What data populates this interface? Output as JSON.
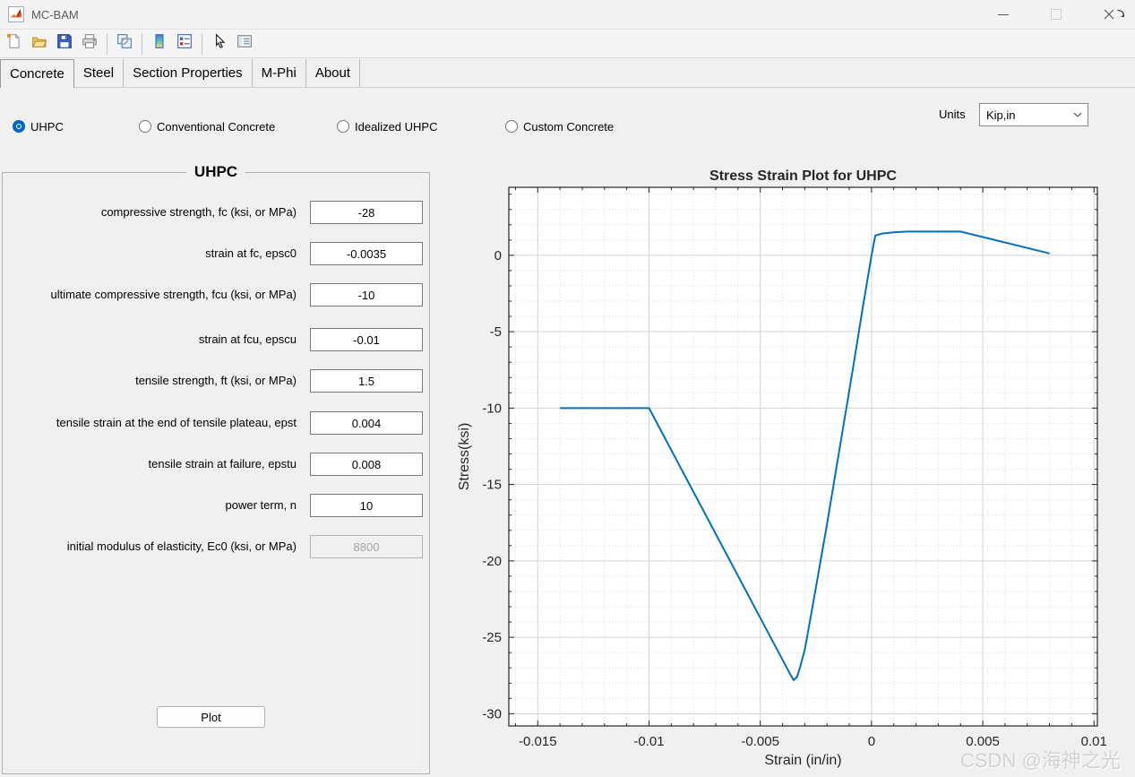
{
  "window": {
    "title": "MC-BAM",
    "controls": [
      {
        "name": "minimize"
      },
      {
        "name": "maximize"
      },
      {
        "name": "close"
      }
    ]
  },
  "toolbar": {
    "icons": [
      {
        "name": "new-figure",
        "sep_after": false
      },
      {
        "name": "open-file",
        "sep_after": false
      },
      {
        "name": "save-figure",
        "sep_after": false
      },
      {
        "name": "print-figure",
        "sep_after": true
      },
      {
        "name": "link-plot",
        "sep_after": true
      },
      {
        "name": "insert-colorbar",
        "sep_after": false
      },
      {
        "name": "insert-legend",
        "sep_after": true
      },
      {
        "name": "edit-plot",
        "sep_after": false
      },
      {
        "name": "plot-browser",
        "sep_after": false
      }
    ]
  },
  "tabs": [
    {
      "label": "Concrete",
      "selected": true
    },
    {
      "label": "Steel",
      "selected": false
    },
    {
      "label": "Section Properties",
      "selected": false
    },
    {
      "label": "M-Phi",
      "selected": false
    },
    {
      "label": "About",
      "selected": false
    }
  ],
  "materials": [
    {
      "label": "UHPC",
      "selected": true
    },
    {
      "label": "Conventional Concrete",
      "selected": false
    },
    {
      "label": "Idealized UHPC",
      "selected": false
    },
    {
      "label": "Custom Concrete",
      "selected": false
    }
  ],
  "units": {
    "label": "Units",
    "value": "Kip,in"
  },
  "panel": {
    "title": "UHPC",
    "fields": [
      {
        "key": "fc",
        "label": "compressive strength, fc (ksi, or MPa)",
        "value": "-28",
        "disabled": false
      },
      {
        "key": "epsc0",
        "label": "strain at fc, epsc0",
        "value": "-0.0035",
        "disabled": false
      },
      {
        "key": "fcu",
        "label": "ultimate compressive strength, fcu (ksi, or MPa)",
        "value": "-10",
        "disabled": false
      },
      {
        "key": "epscu",
        "label": "strain at fcu, epscu",
        "value": "-0.01",
        "disabled": false
      },
      {
        "key": "ft",
        "label": "tensile strength, ft (ksi, or MPa)",
        "value": "1.5",
        "disabled": false
      },
      {
        "key": "epst",
        "label": "tensile strain at the end of tensile plateau, epst",
        "value": "0.004",
        "disabled": false
      },
      {
        "key": "epstu",
        "label": "tensile strain at failure, epstu",
        "value": "0.008",
        "disabled": false
      },
      {
        "key": "n",
        "label": "power term, n",
        "value": "10",
        "disabled": false
      },
      {
        "key": "Ec0",
        "label": "initial modulus of elasticity, Ec0 (ksi, or MPa)",
        "value": "8800",
        "disabled": true
      }
    ],
    "plot_button": "Plot"
  },
  "chart_data": {
    "type": "line",
    "title": "Stress Strain Plot for UHPC",
    "xlabel": "Strain (in/in)",
    "ylabel": "Stress(ksi)",
    "xlim": [
      -0.0163,
      0.01015
    ],
    "ylim": [
      -30.8,
      4.45
    ],
    "xticks": [
      -0.015,
      -0.01,
      -0.005,
      0,
      0.005,
      0.01
    ],
    "xtick_labels": [
      "-0.015",
      "-0.01",
      "-0.005",
      "0",
      "0.005",
      "0.01"
    ],
    "yticks": [
      -30,
      -25,
      -20,
      -15,
      -10,
      -5,
      0
    ],
    "ytick_labels": [
      "-30",
      "-25",
      "-20",
      "-15",
      "-10",
      "-5",
      "0"
    ],
    "x_minor_step": 0.001,
    "y_minor_step": 1,
    "grid": true,
    "legend": "none",
    "line_color": "#0072bd",
    "series": [
      {
        "points": [
          [
            -0.014,
            -10
          ],
          [
            -0.01,
            -10
          ],
          [
            -0.0037,
            -27.3
          ],
          [
            -0.0035,
            -27.8
          ],
          [
            -0.00335,
            -27.6
          ],
          [
            -0.0032,
            -26.9
          ],
          [
            -0.003,
            -25.8
          ],
          [
            -0.0027,
            -23.4
          ],
          [
            -0.0024,
            -20.9
          ],
          [
            -0.002,
            -17.6
          ],
          [
            -0.0016,
            -14.1
          ],
          [
            -0.0012,
            -10.6
          ],
          [
            -0.0008,
            -7.1
          ],
          [
            -0.0004,
            -3.5
          ],
          [
            0,
            0
          ],
          [
            0.00017,
            1.3
          ],
          [
            0.0005,
            1.43
          ],
          [
            0.001,
            1.5
          ],
          [
            0.0016,
            1.55
          ],
          [
            0.004,
            1.55
          ],
          [
            0.008,
            0.12
          ]
        ]
      }
    ]
  },
  "watermark": "CSDN @海神之光",
  "colors": {
    "accent": "#0067c0",
    "plot_line": "#0072bd",
    "background": "#f0f0f0"
  }
}
